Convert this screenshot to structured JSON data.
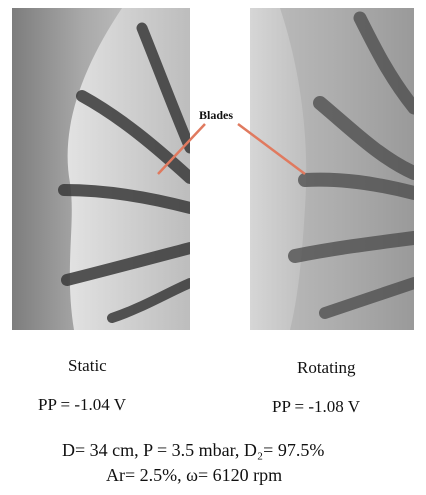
{
  "annotation": {
    "blades": "Blades"
  },
  "panels": {
    "static": {
      "label": "Static",
      "pp": "PP =  -1.04 V"
    },
    "rotating": {
      "label": "Rotating",
      "pp": "PP = -1.08 V"
    }
  },
  "parameters": {
    "line1": "D= 34 cm,  P = 3.5 mbar,  D₂= 97.5%",
    "line2": "Ar= 2.5%,  ω= 6120 rpm"
  },
  "colors": {
    "arrow": "#e07a5f",
    "blade": "#3a3a3a"
  }
}
